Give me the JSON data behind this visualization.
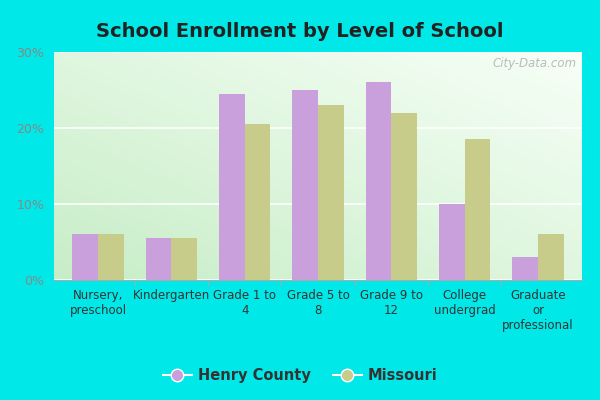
{
  "title": "School Enrollment by Level of School",
  "categories": [
    "Nursery,\npreschool",
    "Kindergarten",
    "Grade 1 to\n4",
    "Grade 5 to\n8",
    "Grade 9 to\n12",
    "College\nundergrad",
    "Graduate\nor\nprofessional"
  ],
  "henry_county": [
    6.0,
    5.5,
    24.5,
    25.0,
    26.0,
    10.0,
    3.0
  ],
  "missouri": [
    6.0,
    5.5,
    20.5,
    23.0,
    22.0,
    18.5,
    6.0
  ],
  "henry_color": "#c9a0dc",
  "missouri_color": "#c8cc8a",
  "bg_outer": "#00e8e8",
  "ylim": [
    0,
    30
  ],
  "yticks": [
    0,
    10,
    20,
    30
  ],
  "ytick_labels": [
    "0%",
    "10%",
    "20%",
    "30%"
  ],
  "legend_henry": "Henry County",
  "legend_missouri": "Missouri",
  "watermark": "City-Data.com",
  "bar_width": 0.35
}
